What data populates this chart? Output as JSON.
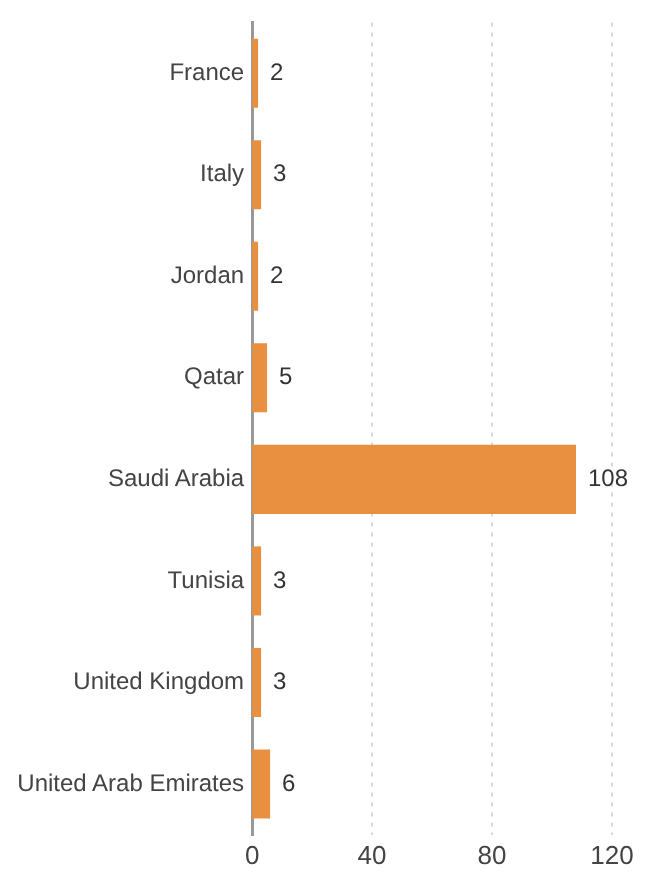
{
  "chart_data": {
    "type": "bar",
    "orientation": "horizontal",
    "categories": [
      "France",
      "Italy",
      "Jordan",
      "Qatar",
      "Saudi Arabia",
      "Tunisia",
      "United Kingdom",
      "United Arab Emirates"
    ],
    "values": [
      2,
      3,
      2,
      5,
      108,
      3,
      3,
      6
    ],
    "color": "#e8903f",
    "xlim": [
      0,
      120
    ],
    "xticks": [
      0,
      40,
      80,
      120
    ],
    "grid": "x",
    "data_labels": true,
    "legend": false
  }
}
